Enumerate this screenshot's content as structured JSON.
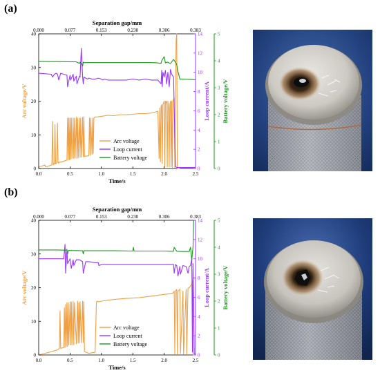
{
  "panels": [
    {
      "label": "(a)",
      "photo_description": "",
      "chart_data": {
        "type": "line",
        "title": "",
        "top_xlabel": "Separation gap/mm",
        "top_xticks": [
          "0.000",
          "0.077",
          "0.153",
          "0.230",
          "0.306",
          "0.383"
        ],
        "xlabel": "Time/s",
        "xlim": [
          0,
          2.5
        ],
        "xticks": [
          "0.0",
          "0.5",
          "1.0",
          "1.5",
          "2.0",
          "2.5"
        ],
        "ylabel_left": "Arc voltage/V",
        "ylim_left": [
          0,
          40
        ],
        "yticks_left": [
          "0",
          "10",
          "20",
          "30",
          "40"
        ],
        "ylabel_right1": "Loop current/A",
        "ylim_right1": [
          0,
          14
        ],
        "yticks_right1": [
          "0",
          "2",
          "4",
          "6",
          "8",
          "10",
          "12",
          "14"
        ],
        "ylabel_right2": "Battery voltage/V",
        "ylim_right2": [
          0,
          5
        ],
        "yticks_right2": [
          "0",
          "1",
          "2",
          "3",
          "4",
          "5"
        ],
        "legend_position": "bottom-center",
        "series": [
          {
            "name": "Arc voltage",
            "axis": "left",
            "color": "#f0a043",
            "x": [
              0.0,
              0.1,
              0.11,
              0.2,
              0.21,
              0.22,
              0.23,
              0.24,
              0.25,
              0.26,
              0.27,
              0.28,
              0.29,
              0.3,
              0.31,
              0.32,
              0.33,
              0.34,
              0.35,
              0.36,
              0.37,
              0.45,
              0.46,
              0.47,
              0.48,
              0.49,
              0.5,
              0.51,
              0.52,
              0.53,
              0.55,
              0.56,
              0.57,
              0.58,
              0.6,
              0.61,
              0.62,
              0.63,
              0.65,
              0.66,
              0.67,
              0.68,
              0.7,
              0.71,
              0.72,
              0.73,
              0.8,
              0.81,
              0.82,
              0.83,
              0.85,
              0.86,
              0.87,
              0.88,
              0.89,
              0.9,
              0.92,
              1.0,
              1.1,
              1.2,
              1.3,
              1.4,
              1.5,
              1.6,
              1.7,
              1.8,
              1.9,
              1.92,
              1.93,
              1.94,
              1.95,
              1.96,
              1.97,
              1.98,
              1.99,
              2.0,
              2.01,
              2.02,
              2.03,
              2.04,
              2.05,
              2.06,
              2.07,
              2.08,
              2.09,
              2.1,
              2.11,
              2.12,
              2.13,
              2.14,
              2.15,
              2.16,
              2.17,
              2.18,
              2.19,
              2.2,
              2.21,
              2.22,
              2.23,
              2.24,
              2.25
            ],
            "values": [
              0.5,
              1,
              0.5,
              1,
              1.2,
              14,
              1,
              1.5,
              1.3,
              13,
              1.4,
              1.5,
              2,
              13.5,
              1.6,
              1.7,
              1.8,
              2,
              2,
              2,
              2,
              2.5,
              15,
              2.5,
              15,
              2.6,
              15,
              2.7,
              15,
              3,
              15,
              3,
              15,
              3.1,
              15.2,
              3,
              15,
              3.2,
              15,
              3.3,
              15,
              3.4,
              15.2,
              3.5,
              15.3,
              3.6,
              3.8,
              15,
              4,
              15,
              4.2,
              15,
              4.5,
              15,
              15.2,
              15.3,
              15.3,
              15.5,
              15.8,
              15.7,
              16,
              16,
              16.1,
              16.3,
              16.3,
              16.5,
              17,
              3,
              18,
              2,
              18.5,
              19,
              1.5,
              19,
              19.5,
              20,
              0.5,
              20,
              19.5,
              20,
              0.5,
              20,
              18,
              0.5,
              19,
              20,
              0.5,
              20,
              0.3,
              20,
              20.5,
              21,
              0.2,
              22,
              38,
              40,
              0,
              0,
              0,
              0,
              0
            ]
          },
          {
            "name": "Loop current",
            "axis": "right1",
            "color": "#9933ff",
            "x": [
              0.0,
              0.2,
              0.22,
              0.25,
              0.28,
              0.3,
              0.32,
              0.35,
              0.4,
              0.45,
              0.46,
              0.5,
              0.51,
              0.55,
              0.56,
              0.6,
              0.61,
              0.65,
              0.66,
              0.68,
              0.7,
              0.71,
              0.72,
              0.75,
              0.78,
              0.8,
              0.85,
              0.9,
              0.95,
              1.0,
              1.02,
              1.05,
              1.1,
              1.2,
              1.3,
              1.4,
              1.5,
              1.6,
              1.7,
              1.8,
              1.9,
              1.95,
              1.96,
              1.97,
              1.98,
              2.0,
              2.02,
              2.04,
              2.06,
              2.08,
              2.1,
              2.12,
              2.15,
              2.18,
              2.2,
              2.22,
              2.25,
              2.3,
              2.4,
              2.5
            ],
            "values": [
              9.9,
              9.8,
              9.5,
              9.8,
              9.9,
              9.8,
              9.2,
              9.9,
              9.8,
              9.7,
              8.5,
              9.7,
              9.2,
              9.8,
              9.1,
              9.6,
              8.8,
              9.6,
              9.5,
              12.5,
              9.5,
              8.8,
              9.5,
              9.4,
              9.3,
              9.4,
              9.3,
              9.3,
              9.4,
              9.3,
              9.2,
              9.3,
              9.2,
              9.2,
              9.2,
              9.2,
              9.3,
              9.2,
              9.3,
              9.2,
              9.2,
              8.8,
              10.2,
              8.5,
              10,
              9.5,
              10.2,
              8.8,
              10,
              8.5,
              10.3,
              9.8,
              9.5,
              0.2,
              0.1,
              0.1,
              0.1,
              0.1,
              0.1,
              0.1
            ]
          },
          {
            "name": "Battery voltage",
            "axis": "right2",
            "color": "#1a9a1a",
            "x": [
              0.0,
              0.3,
              0.6,
              0.65,
              0.66,
              0.7,
              0.71,
              0.72,
              0.9,
              1.2,
              1.5,
              1.8,
              1.9,
              1.95,
              1.96,
              2.0,
              2.02,
              2.05,
              2.1,
              2.15,
              2.18,
              2.2,
              2.22,
              2.25,
              2.3,
              2.4,
              2.5
            ],
            "values": [
              3.98,
              3.97,
              3.96,
              3.9,
              3.95,
              3.8,
              3.95,
              3.93,
              3.93,
              3.93,
              3.93,
              3.93,
              3.92,
              3.9,
              4.0,
              4.15,
              3.92,
              3.95,
              3.9,
              4.05,
              3.95,
              3.85,
              3.6,
              3.32,
              3.32,
              3.31,
              3.3
            ]
          }
        ]
      }
    },
    {
      "label": "(b)",
      "photo_description": "",
      "chart_data": {
        "type": "line",
        "title": "",
        "top_xlabel": "Separation gap/mm",
        "top_xticks": [
          "0.000",
          "0.077",
          "0.153",
          "0.230",
          "0.306",
          "0.383"
        ],
        "xlabel": "Time/s",
        "xlim": [
          0,
          2.5
        ],
        "xticks": [
          "0.0",
          "0.5",
          "1.0",
          "1.5",
          "2.0",
          "2.5"
        ],
        "ylabel_left": "Arc voltage/V",
        "ylim_left": [
          0,
          40
        ],
        "yticks_left": [
          "0",
          "10",
          "20",
          "30",
          "40"
        ],
        "ylabel_right1": "Loop current/A",
        "ylim_right1": [
          0,
          14
        ],
        "yticks_right1": [
          "0",
          "2",
          "4",
          "6",
          "8",
          "10",
          "12",
          "14"
        ],
        "ylabel_right2": "Battery voltage/V",
        "ylim_right2": [
          0,
          5
        ],
        "yticks_right2": [
          "0",
          "1",
          "2",
          "3",
          "4",
          "5"
        ],
        "legend_position": "bottom-center",
        "series": [
          {
            "name": "Arc voltage",
            "axis": "left",
            "color": "#f0a043",
            "x": [
              0.0,
              0.1,
              0.2,
              0.3,
              0.33,
              0.34,
              0.35,
              0.4,
              0.41,
              0.42,
              0.43,
              0.44,
              0.45,
              0.46,
              0.47,
              0.48,
              0.5,
              0.51,
              0.52,
              0.53,
              0.55,
              0.56,
              0.57,
              0.6,
              0.62,
              0.63,
              0.64,
              0.65,
              0.66,
              0.68,
              0.7,
              0.71,
              0.72,
              0.73,
              0.8,
              0.9,
              0.92,
              0.93,
              0.95,
              1.0,
              1.2,
              1.4,
              1.6,
              1.8,
              2.0,
              2.1,
              2.15,
              2.16,
              2.17,
              2.18,
              2.2,
              2.21,
              2.22,
              2.25,
              2.26,
              2.3,
              2.31,
              2.35,
              2.36,
              2.38,
              2.4,
              2.42,
              2.44,
              2.45,
              2.46,
              2.47,
              2.5
            ],
            "values": [
              0,
              0.5,
              1,
              1.5,
              2,
              13,
              2,
              2.2,
              14,
              2.2,
              15,
              2.5,
              15.5,
              2.5,
              15.5,
              3,
              15.8,
              3,
              15.8,
              3,
              16,
              3,
              15.5,
              3.3,
              16,
              3.5,
              15.5,
              3.6,
              15.8,
              3.6,
              16,
              3.7,
              15.8,
              1,
              0.5,
              0.8,
              15.5,
              16,
              15.8,
              16,
              16.5,
              16.8,
              17,
              17.5,
              18,
              18.2,
              18.5,
              19,
              0.3,
              19,
              19.5,
              0.3,
              19,
              19.5,
              0.5,
              19,
              0.3,
              19.5,
              0.3,
              19.8,
              20,
              20.5,
              21,
              22,
              0,
              0,
              0
            ]
          },
          {
            "name": "Loop current",
            "axis": "right1",
            "color": "#9933ff",
            "x": [
              0.0,
              0.2,
              0.4,
              0.42,
              0.43,
              0.45,
              0.46,
              0.5,
              0.52,
              0.55,
              0.56,
              0.6,
              0.65,
              0.7,
              0.71,
              0.75,
              0.8,
              0.9,
              0.95,
              0.96,
              1.0,
              1.2,
              1.4,
              1.6,
              1.8,
              2.0,
              2.15,
              2.16,
              2.18,
              2.2,
              2.22,
              2.25,
              2.26,
              2.3,
              2.35,
              2.38,
              2.4,
              2.42,
              2.44,
              2.45,
              2.46,
              2.48,
              2.5
            ],
            "values": [
              10,
              10,
              10,
              11.5,
              8.5,
              11,
              9.5,
              10,
              9,
              9.9,
              9.3,
              9.9,
              9.9,
              9.7,
              8.5,
              9.7,
              9.7,
              9.6,
              9.6,
              9.3,
              9.4,
              9.4,
              9.4,
              9.4,
              9.4,
              9.4,
              9.4,
              8.5,
              9.4,
              9.3,
              8.2,
              9.2,
              8.4,
              9.3,
              9.2,
              8.5,
              9.2,
              9.3,
              10,
              0.3,
              9.5,
              0.1,
              0.1
            ]
          },
          {
            "name": "Battery voltage",
            "axis": "right2",
            "color": "#1a9a1a",
            "x": [
              0.0,
              0.3,
              0.45,
              0.46,
              0.47,
              0.5,
              0.7,
              0.71,
              0.72,
              0.9,
              1.2,
              1.5,
              1.51,
              1.52,
              1.8,
              2.0,
              2.1,
              2.15,
              2.16,
              2.2,
              2.3,
              2.4,
              2.42,
              2.44,
              2.45,
              2.46,
              2.47,
              2.48,
              2.5
            ],
            "values": [
              3.9,
              3.9,
              3.89,
              3.75,
              3.88,
              3.88,
              3.87,
              3.75,
              3.87,
              3.87,
              3.87,
              3.86,
              4.0,
              3.86,
              3.86,
              3.86,
              3.85,
              3.85,
              4.0,
              3.85,
              3.84,
              3.84,
              4.0,
              3.5,
              3.8,
              4.0,
              5.0,
              5.0,
              5.0
            ]
          }
        ]
      }
    }
  ]
}
